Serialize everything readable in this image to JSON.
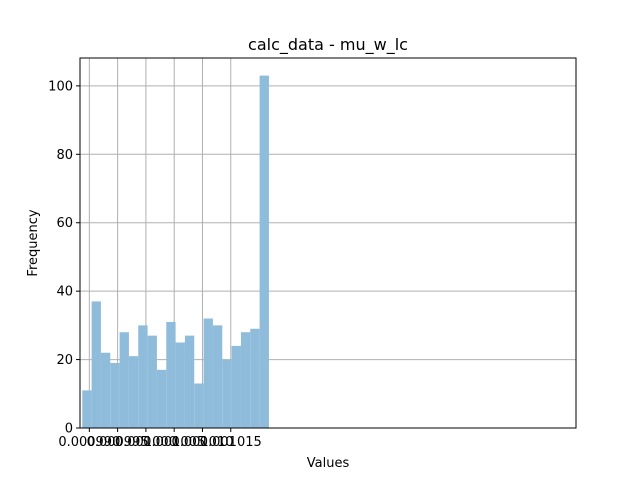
{
  "chart_data": {
    "type": "bar",
    "title": "calc_data - mu_w_lc",
    "xlabel": "Values",
    "ylabel": "Frequency",
    "xlim": [
      0.00098835,
      0.00107603
    ],
    "ylim": [
      0,
      108.15
    ],
    "xticks": [
      0.00099,
      0.000995,
      0.001,
      0.001005,
      0.00101,
      0.001015
    ],
    "xtick_labels": [
      "0.000990",
      "0.000995",
      "0.001000",
      "0.001005",
      "0.001010",
      "0.001015"
    ],
    "xticks_values": [
      0.00099,
      0.000995,
      0.001,
      0.001005,
      0.00101,
      0.001015
    ],
    "yticks": [
      0,
      20,
      40,
      60,
      80,
      100
    ],
    "grid": true,
    "bar_color": "#8fbcdb",
    "bin_edges": [
      0.00098875,
      0.0009904,
      0.00099205,
      0.0009937,
      0.00099535,
      0.000997,
      0.00099865,
      0.0010003,
      0.00100195,
      0.0010036,
      0.00100525,
      0.0010069,
      0.00100855,
      0.0010102,
      0.00101185,
      0.0010135,
      0.00101515,
      0.0010168,
      0.00101845,
      0.0010201,
      0.00102175
    ],
    "values": [
      11,
      37,
      22,
      19,
      28,
      21,
      30,
      27,
      17,
      31,
      25,
      27,
      13,
      32,
      30,
      20,
      24,
      28,
      29,
      103
    ]
  }
}
